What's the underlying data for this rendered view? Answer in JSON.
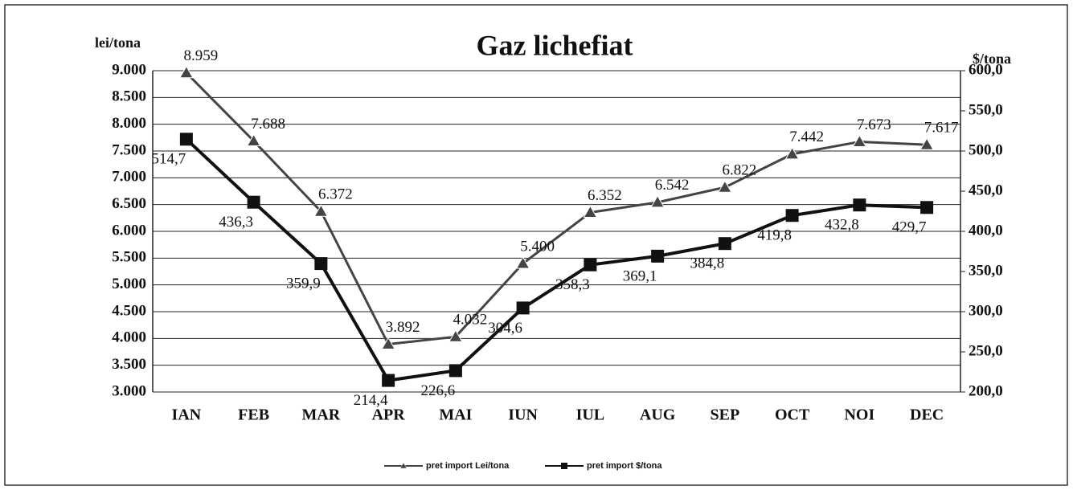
{
  "chart_data": {
    "type": "line",
    "title": "Gaz lichefiat",
    "y_label": "lei/tona",
    "y2_label": "$/tona",
    "categories": [
      "IAN",
      "FEB",
      "MAR",
      "APR",
      "MAI",
      "IUN",
      "IUL",
      "AUG",
      "SEP",
      "OCT",
      "NOI",
      "DEC"
    ],
    "series": [
      {
        "name": "pret import Lei/tona",
        "color": "#444444",
        "marker": "triangle",
        "axis": "y",
        "values": [
          8959,
          7688,
          6372,
          3892,
          4032,
          5400,
          6352,
          6542,
          6822,
          7442,
          7673,
          7617
        ],
        "value_labels": [
          "8.959",
          "7.688",
          "6.372",
          "3.892",
          "4.032",
          "5.400",
          "6.352",
          "6.542",
          "6.822",
          "7.442",
          "7.673",
          "7.617"
        ]
      },
      {
        "name": "pret import $/tona",
        "color": "#111111",
        "marker": "square",
        "axis": "y2",
        "values": [
          514.7,
          436.3,
          359.9,
          214.4,
          226.6,
          304.6,
          358.3,
          369.1,
          384.8,
          419.8,
          432.8,
          429.7
        ],
        "value_labels": [
          "514,7",
          "436,3",
          "359,9",
          "214,4",
          "226,6",
          "304,6",
          "358,3",
          "369,1",
          "384,8",
          "419,8",
          "432,8",
          "429,7"
        ]
      }
    ],
    "ylim": [
      3000,
      9000
    ],
    "yticks": [
      {
        "value": 3000,
        "label": "3.000"
      },
      {
        "value": 3500,
        "label": "3.500"
      },
      {
        "value": 4000,
        "label": "4.000"
      },
      {
        "value": 4500,
        "label": "4.500"
      },
      {
        "value": 5000,
        "label": "5.000"
      },
      {
        "value": 5500,
        "label": "5.500"
      },
      {
        "value": 6000,
        "label": "6.000"
      },
      {
        "value": 6500,
        "label": "6.500"
      },
      {
        "value": 7000,
        "label": "7.000"
      },
      {
        "value": 7500,
        "label": "7.500"
      },
      {
        "value": 8000,
        "label": "8.000"
      },
      {
        "value": 8500,
        "label": "8.500"
      },
      {
        "value": 9000,
        "label": "9.000"
      }
    ],
    "y2lim": [
      200,
      600
    ],
    "y2ticks": [
      {
        "value": 200,
        "label": "200,0"
      },
      {
        "value": 250,
        "label": "250,0"
      },
      {
        "value": 300,
        "label": "300,0"
      },
      {
        "value": 350,
        "label": "350,0"
      },
      {
        "value": 400,
        "label": "400,0"
      },
      {
        "value": 450,
        "label": "450,0"
      },
      {
        "value": 500,
        "label": "500,0"
      },
      {
        "value": 550,
        "label": "550,0"
      },
      {
        "value": 600,
        "label": "600,0"
      }
    ],
    "grid": true,
    "legend": "bottom"
  }
}
